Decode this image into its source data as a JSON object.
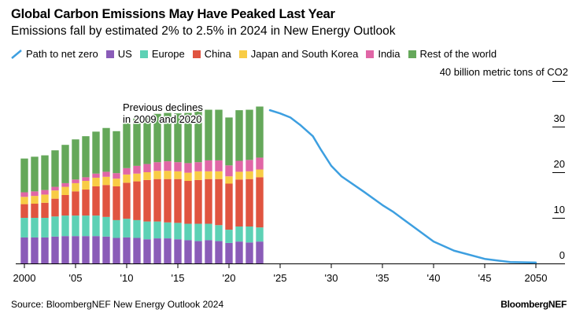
{
  "title": "Global Carbon Emissions May Have Peaked Last Year",
  "subtitle": "Emissions fall by estimated 2% to 2.5% in 2024 in New Energy Outlook",
  "source": "Source: BloombergNEF New Energy Outlook 2024",
  "brand": "BloombergNEF",
  "chart_data": {
    "type": "bar",
    "stacked": true,
    "ylabel": "40 billion metric tons of CO2",
    "ylim": [
      0,
      40
    ],
    "yticks": [
      "0",
      "10",
      "20",
      "30"
    ],
    "xlim": [
      2000,
      2052
    ],
    "xticks": [
      {
        "value": 2000,
        "label": "2000"
      },
      {
        "value": 2005,
        "label": "'05"
      },
      {
        "value": 2010,
        "label": "'10"
      },
      {
        "value": 2015,
        "label": "'15"
      },
      {
        "value": 2020,
        "label": "'20"
      },
      {
        "value": 2025,
        "label": "'25"
      },
      {
        "value": 2030,
        "label": "'30"
      },
      {
        "value": 2035,
        "label": "'35"
      },
      {
        "value": 2040,
        "label": "'40"
      },
      {
        "value": 2045,
        "label": "'45"
      },
      {
        "value": 2050,
        "label": "2050"
      }
    ],
    "annotation": {
      "lines": [
        "Previous declines",
        "in 2009 and 2020"
      ]
    },
    "legend_placement": "top",
    "categories": [
      2000,
      2001,
      2002,
      2003,
      2004,
      2005,
      2006,
      2007,
      2008,
      2009,
      2010,
      2011,
      2012,
      2013,
      2014,
      2015,
      2016,
      2017,
      2018,
      2019,
      2020,
      2021,
      2022,
      2023
    ],
    "series": [
      {
        "name": "US",
        "color": "#8a5cb8",
        "values": [
          5.7,
          5.7,
          5.7,
          5.9,
          6.0,
          6.0,
          6.0,
          6.0,
          5.9,
          5.6,
          5.7,
          5.6,
          5.3,
          5.5,
          5.5,
          5.3,
          5.1,
          4.9,
          5.1,
          4.9,
          4.5,
          4.8,
          4.6,
          4.8
        ]
      },
      {
        "name": "Europe",
        "color": "#5dd1b5",
        "values": [
          4.3,
          4.3,
          4.3,
          4.4,
          4.5,
          4.5,
          4.5,
          4.5,
          4.3,
          3.9,
          4.1,
          3.9,
          3.9,
          3.7,
          3.5,
          3.6,
          3.6,
          3.8,
          3.6,
          3.5,
          2.9,
          3.3,
          3.5,
          3.1
        ]
      },
      {
        "name": "China",
        "color": "#e05440",
        "values": [
          3.0,
          3.1,
          3.3,
          3.9,
          4.5,
          5.3,
          5.7,
          6.4,
          7.0,
          7.4,
          7.9,
          8.5,
          9.1,
          9.3,
          9.5,
          9.6,
          9.4,
          9.6,
          9.8,
          10.1,
          10.1,
          10.3,
          10.4,
          11.0
        ]
      },
      {
        "name": "Japan and South Korea",
        "color": "#f8cc45",
        "values": [
          1.6,
          1.7,
          1.8,
          1.8,
          1.8,
          1.8,
          1.9,
          1.9,
          1.8,
          1.7,
          1.8,
          1.7,
          1.7,
          1.8,
          1.8,
          1.7,
          1.8,
          1.9,
          1.7,
          1.7,
          1.6,
          1.7,
          1.7,
          1.7
        ]
      },
      {
        "name": "India",
        "color": "#e066a6",
        "values": [
          1.0,
          1.0,
          1.0,
          0.8,
          0.8,
          0.8,
          0.8,
          0.9,
          1.1,
          1.2,
          1.4,
          1.7,
          1.8,
          1.9,
          2.1,
          2.0,
          2.1,
          2.0,
          2.4,
          2.4,
          2.4,
          2.4,
          2.5,
          2.6
        ]
      },
      {
        "name": "Rest of the world",
        "color": "#65a85a",
        "values": [
          7.4,
          7.6,
          7.6,
          8.0,
          8.4,
          8.8,
          9.0,
          9.2,
          9.6,
          9.2,
          10.0,
          10.5,
          10.4,
          10.6,
          10.6,
          10.7,
          11.0,
          11.1,
          11.1,
          11.1,
          10.5,
          11.1,
          11.0,
          11.2
        ]
      }
    ],
    "line": {
      "name": "Path to net zero",
      "color": "#3d9fe0",
      "x": [
        2024,
        2025,
        2026,
        2027,
        2028.2,
        2029,
        2030,
        2031,
        2033.2,
        2035,
        2036,
        2038.3,
        2040,
        2042,
        2045,
        2047.5,
        2050
      ],
      "y": [
        33.6,
        32.9,
        32.0,
        30.3,
        27.9,
        24.9,
        21.4,
        19.1,
        15.7,
        12.8,
        11.4,
        7.6,
        4.8,
        2.8,
        1.0,
        0.3,
        0.2
      ]
    }
  }
}
